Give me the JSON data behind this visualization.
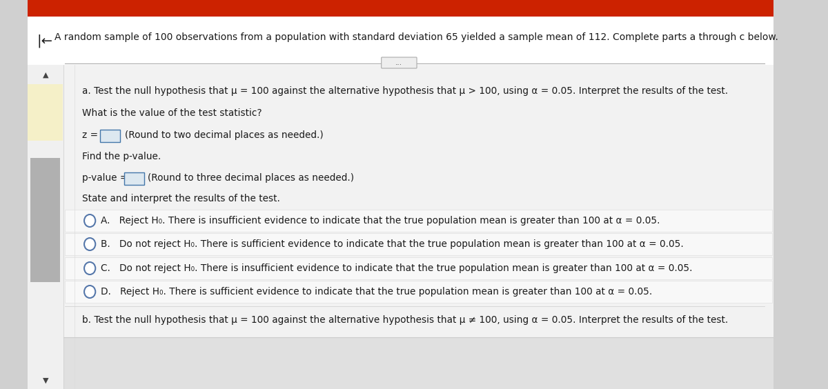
{
  "bg_outer": "#d0d0d0",
  "bg_header_area": "#ffffff",
  "bg_content": "#e8e8e8",
  "bg_option_row": "#f5f5f5",
  "red_top_bar": "#cc2200",
  "scrollbar_bg": "#f0f0f0",
  "scrollbar_thumb": "#b0b0b0",
  "yellow_highlight": "#f5f0c8",
  "text_color": "#1a1a1a",
  "input_box_bg": "#dde8f0",
  "input_border": "#4477aa",
  "radio_border": "#5577aa",
  "header_text": "A random sample of 100 observations from a population with standard deviation 65 yielded a sample mean of 112. Complete parts a through c below.",
  "part_a": "a. Test the null hypothesis that μ = 100 against the alternative hypothesis that μ > 100, using α = 0.05. Interpret the results of the test.",
  "what_is": "What is the value of the test statistic?",
  "z_prefix": "z = ",
  "z_round": "(Round to two decimal places as needed.)",
  "find_p": "Find the p-value.",
  "pv_prefix": "p-value = ",
  "pv_round": "(Round to three decimal places as needed.)",
  "state": "State and interpret the results of the test.",
  "opt_A": "A.   Reject H₀. There is insufficient evidence to indicate that the true population mean is greater than 100 at α = 0.05.",
  "opt_B": "B.   Do not reject H₀. There is sufficient evidence to indicate that the true population mean is greater than 100 at α = 0.05.",
  "opt_C": "C.   Do not reject H₀. There is insufficient evidence to indicate that the true population mean is greater than 100 at α = 0.05.",
  "opt_D": "D.   Reject H₀. There is sufficient evidence to indicate that the true population mean is greater than 100 at α = 0.05.",
  "part_b": "b. Test the null hypothesis that μ = 100 against the alternative hypothesis that μ ≠ 100, using α = 0.05. Interpret the results of the test.",
  "font_main": 9.8,
  "font_header": 10.0
}
